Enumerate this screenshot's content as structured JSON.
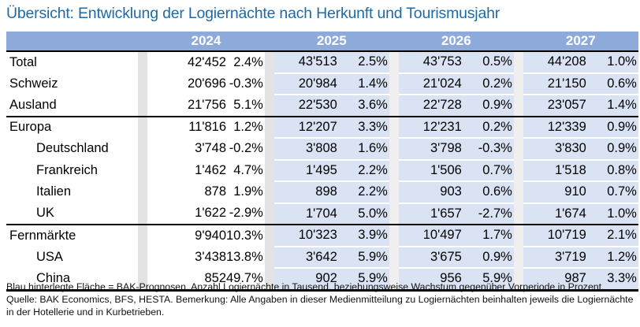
{
  "title": "Übersicht: Entwicklung der Logiernächte nach Herkunft und Tourismusjahr",
  "years": [
    "2024",
    "2025",
    "2026",
    "2027"
  ],
  "rows": [
    {
      "label": "Total",
      "indent": false,
      "values": [
        [
          "42'452",
          "2.4%"
        ],
        [
          "43'513",
          "2.5%"
        ],
        [
          "43'753",
          "0.5%"
        ],
        [
          "44'208",
          "1.0%"
        ]
      ]
    },
    {
      "label": "Schweiz",
      "indent": false,
      "values": [
        [
          "20'696",
          "-0.3%"
        ],
        [
          "20'984",
          "1.4%"
        ],
        [
          "21'024",
          "0.2%"
        ],
        [
          "21'150",
          "0.6%"
        ]
      ]
    },
    {
      "label": "Ausland",
      "indent": false,
      "values": [
        [
          "21'756",
          "5.1%"
        ],
        [
          "22'530",
          "3.6%"
        ],
        [
          "22'728",
          "0.9%"
        ],
        [
          "23'057",
          "1.4%"
        ]
      ]
    },
    {
      "label": "Europa",
      "indent": false,
      "values": [
        [
          "11'816",
          "1.2%"
        ],
        [
          "12'207",
          "3.3%"
        ],
        [
          "12'231",
          "0.2%"
        ],
        [
          "12'339",
          "0.9%"
        ]
      ]
    },
    {
      "label": "Deutschland",
      "indent": true,
      "values": [
        [
          "3'748",
          "-0.2%"
        ],
        [
          "3'808",
          "1.6%"
        ],
        [
          "3'798",
          "-0.3%"
        ],
        [
          "3'830",
          "0.9%"
        ]
      ]
    },
    {
      "label": "Frankreich",
      "indent": true,
      "values": [
        [
          "1'462",
          "4.7%"
        ],
        [
          "1'495",
          "2.2%"
        ],
        [
          "1'506",
          "0.7%"
        ],
        [
          "1'518",
          "0.8%"
        ]
      ]
    },
    {
      "label": "Italien",
      "indent": true,
      "values": [
        [
          "878",
          "1.9%"
        ],
        [
          "898",
          "2.2%"
        ],
        [
          "903",
          "0.6%"
        ],
        [
          "910",
          "0.7%"
        ]
      ]
    },
    {
      "label": "UK",
      "indent": true,
      "values": [
        [
          "1'622",
          "-2.9%"
        ],
        [
          "1'704",
          "5.0%"
        ],
        [
          "1'657",
          "-2.7%"
        ],
        [
          "1'674",
          "1.0%"
        ]
      ]
    },
    {
      "label": "Fernmärkte",
      "indent": false,
      "values": [
        [
          "9'940",
          "10.3%"
        ],
        [
          "10'323",
          "3.9%"
        ],
        [
          "10'497",
          "1.7%"
        ],
        [
          "10'719",
          "2.1%"
        ]
      ]
    },
    {
      "label": "USA",
      "indent": true,
      "values": [
        [
          "3'438",
          "13.8%"
        ],
        [
          "3'642",
          "5.9%"
        ],
        [
          "3'675",
          "0.9%"
        ],
        [
          "3'719",
          "1.2%"
        ]
      ]
    },
    {
      "label": "China",
      "indent": true,
      "values": [
        [
          "852",
          "49.7%"
        ],
        [
          "902",
          "5.9%"
        ],
        [
          "956",
          "5.9%"
        ],
        [
          "987",
          "3.3%"
        ]
      ]
    }
  ],
  "footnote": "Blau hinterlegte Fläche = BAK-Prognosen, Anzahl Logiernächte in Tausend, beziehungsweise Wachstum gegenüber Vorperiode in Prozent. Quelle: BAK Economics, BFS, HESTA. Bemerkung: Alle Angaben in dieser Medienmitteilung zu Logiernächten beinhalten jeweils die Logiernächte in der Hotellerie und in Kurbetrieben.",
  "colors": {
    "header": "#8eaadb",
    "forecast": "#dae3f3",
    "title": "#1f6aa5"
  }
}
